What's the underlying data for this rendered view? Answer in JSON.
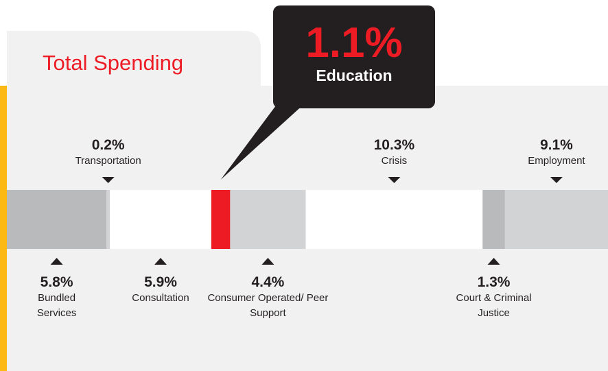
{
  "chart_data": {
    "type": "bar",
    "orientation": "horizontal-stacked",
    "title": "Total Spending",
    "categories": [
      "Bundled Services",
      "Transportation",
      "Consultation",
      "Education",
      "Consumer Operated/ Peer Support",
      "Crisis",
      "Court & Criminal Justice",
      "Employment"
    ],
    "values": [
      5.8,
      0.2,
      5.9,
      1.1,
      4.4,
      10.3,
      1.3,
      9.1
    ],
    "value_labels": [
      "5.8%",
      "0.2%",
      "5.9%",
      "1.1%",
      "4.4%",
      "10.3%",
      "1.3%",
      "9.1%"
    ],
    "colors": [
      "#b9babc",
      "#d2d3d5",
      "#ffffff",
      "#ed1c24",
      "#d2d3d5",
      "#ffffff",
      "#b9babc",
      "#d2d3d5"
    ],
    "label_sides": [
      "below",
      "above",
      "below",
      "callout",
      "below",
      "above",
      "below",
      "above"
    ],
    "xlim": [
      0,
      35
    ]
  }
}
